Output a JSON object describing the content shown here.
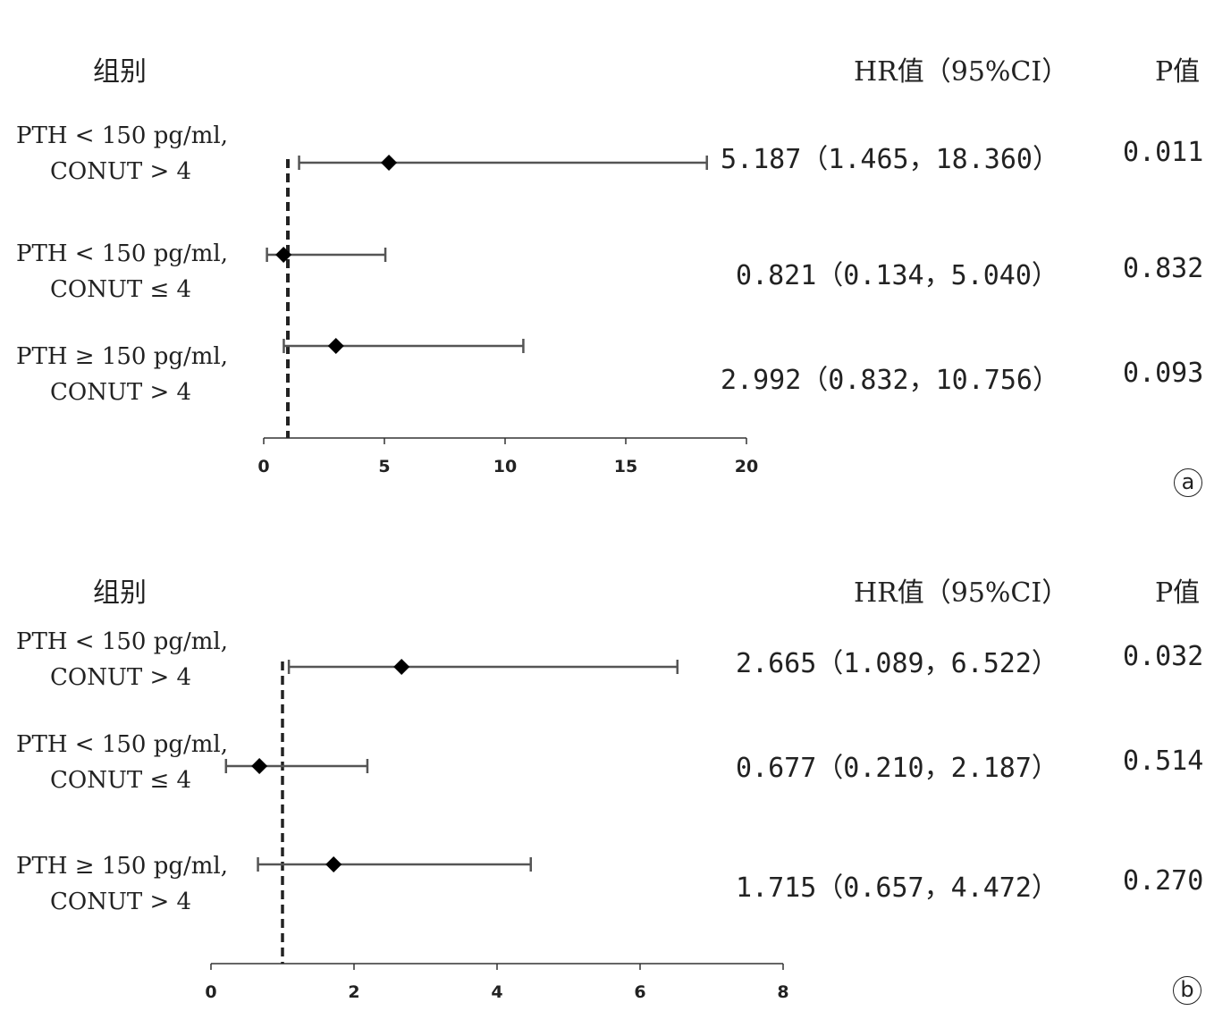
{
  "chart_data": [
    {
      "type": "forest",
      "panel_label": "a",
      "headers": {
        "group": "组别",
        "hr": "HR值（95%CI）",
        "p": "P值"
      },
      "xlim": [
        0,
        20
      ],
      "xticks": [
        0,
        5,
        10,
        15,
        20
      ],
      "reference_line": 1,
      "rows": [
        {
          "group_line1": "PTH < 150 pg/ml,",
          "group_line2": "CONUT > 4",
          "hr": 5.187,
          "lo": 1.465,
          "hi": 18.36,
          "hr_text": "5.187（1.465，18.360）",
          "p": "0.011"
        },
        {
          "group_line1": "PTH < 150 pg/ml,",
          "group_line2": "CONUT ≤ 4",
          "hr": 0.821,
          "lo": 0.134,
          "hi": 5.04,
          "hr_text": "0.821（0.134，5.040）",
          "p": "0.832"
        },
        {
          "group_line1": "PTH ≥ 150 pg/ml,",
          "group_line2": "CONUT > 4",
          "hr": 2.992,
          "lo": 0.832,
          "hi": 10.756,
          "hr_text": "2.992（0.832，10.756）",
          "p": "0.093"
        }
      ]
    },
    {
      "type": "forest",
      "panel_label": "b",
      "headers": {
        "group": "组别",
        "hr": "HR值（95%CI）",
        "p": "P值"
      },
      "xlim": [
        0,
        8
      ],
      "xticks": [
        0,
        2,
        4,
        6,
        8
      ],
      "reference_line": 1,
      "rows": [
        {
          "group_line1": "PTH < 150 pg/ml,",
          "group_line2": "CONUT > 4",
          "hr": 2.665,
          "lo": 1.089,
          "hi": 6.522,
          "hr_text": "2.665（1.089，6.522）",
          "p": "0.032"
        },
        {
          "group_line1": "PTH < 150 pg/ml,",
          "group_line2": "CONUT ≤ 4",
          "hr": 0.677,
          "lo": 0.21,
          "hi": 2.187,
          "hr_text": "0.677（0.210，2.187）",
          "p": "0.514"
        },
        {
          "group_line1": "PTH ≥ 150 pg/ml,",
          "group_line2": "CONUT > 4",
          "hr": 1.715,
          "lo": 0.657,
          "hi": 4.472,
          "hr_text": "1.715（0.657，4.472）",
          "p": "0.270"
        }
      ]
    }
  ]
}
